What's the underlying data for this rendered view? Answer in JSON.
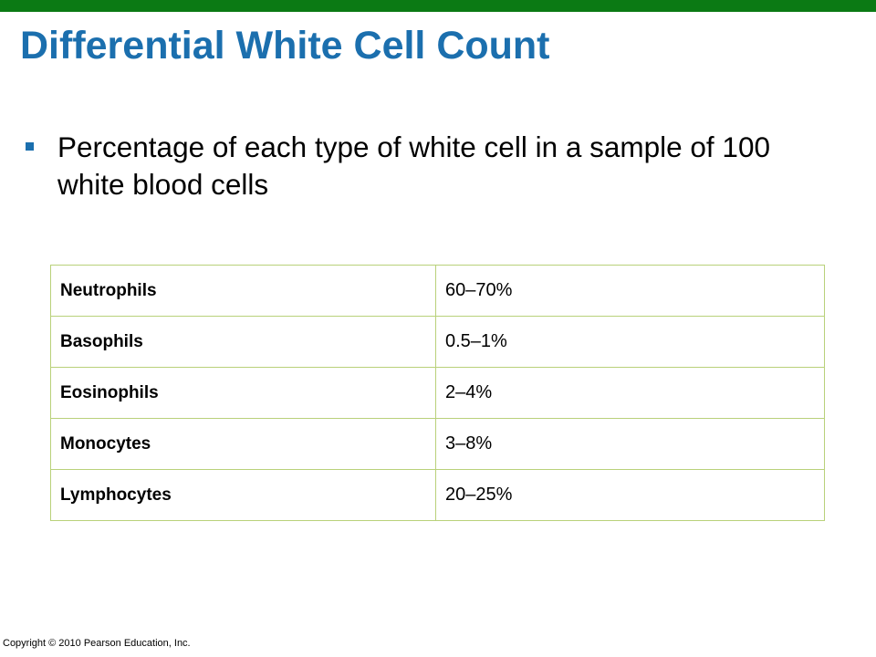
{
  "colors": {
    "top_bar": "#0b7a14",
    "title": "#1b6fae",
    "bullet": "#1b6fae",
    "table_border": "#b9d17a"
  },
  "slide": {
    "title": "Differential White Cell Count",
    "bullets": [
      "Percentage of each type of white cell in a sample of 100 white blood cells"
    ],
    "bullet_icon": "square-bullet-icon"
  },
  "table": {
    "rows": [
      {
        "name": "Neutrophils",
        "value": "60–70%"
      },
      {
        "name": "Basophils",
        "value": "0.5–1%"
      },
      {
        "name": "Eosinophils",
        "value": "2–4%"
      },
      {
        "name": "Monocytes",
        "value": "3–8%"
      },
      {
        "name": "Lymphocytes",
        "value": "20–25%"
      }
    ]
  },
  "footer": {
    "copyright": "Copyright © 2010 Pearson Education, Inc."
  }
}
